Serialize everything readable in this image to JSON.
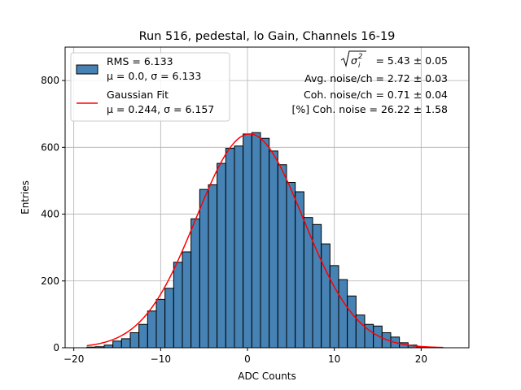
{
  "chart_data": {
    "type": "bar",
    "title": "Run 516, pedestal, lo Gain, Channels 16-19",
    "xlabel": "ADC Counts",
    "ylabel": "Entries",
    "xlim": [
      -21,
      25.5
    ],
    "ylim": [
      0,
      900
    ],
    "xticks": [
      -20,
      -10,
      0,
      10,
      20
    ],
    "yticks": [
      0,
      200,
      400,
      600,
      800
    ],
    "xtick_labels": [
      "−20",
      "−10",
      "0",
      "10",
      "20"
    ],
    "ytick_labels": [
      "0",
      "200",
      "400",
      "600",
      "800"
    ],
    "grid": true,
    "bin_width": 1,
    "bins": [
      {
        "x0": -18.5,
        "count": 2
      },
      {
        "x0": -17.5,
        "count": 3
      },
      {
        "x0": -16.5,
        "count": 8
      },
      {
        "x0": -15.5,
        "count": 20
      },
      {
        "x0": -14.5,
        "count": 27
      },
      {
        "x0": -13.5,
        "count": 45
      },
      {
        "x0": -12.5,
        "count": 70
      },
      {
        "x0": -11.5,
        "count": 110
      },
      {
        "x0": -10.5,
        "count": 145
      },
      {
        "x0": -9.5,
        "count": 178
      },
      {
        "x0": -8.5,
        "count": 256
      },
      {
        "x0": -7.5,
        "count": 287
      },
      {
        "x0": -6.5,
        "count": 386
      },
      {
        "x0": -5.5,
        "count": 474
      },
      {
        "x0": -4.5,
        "count": 488
      },
      {
        "x0": -3.5,
        "count": 552
      },
      {
        "x0": -2.5,
        "count": 597
      },
      {
        "x0": -1.5,
        "count": 604
      },
      {
        "x0": -0.5,
        "count": 640
      },
      {
        "x0": 0.5,
        "count": 644
      },
      {
        "x0": 1.5,
        "count": 627
      },
      {
        "x0": 2.5,
        "count": 589
      },
      {
        "x0": 3.5,
        "count": 548
      },
      {
        "x0": 4.5,
        "count": 495
      },
      {
        "x0": 5.5,
        "count": 467
      },
      {
        "x0": 6.5,
        "count": 390
      },
      {
        "x0": 7.5,
        "count": 369
      },
      {
        "x0": 8.5,
        "count": 311
      },
      {
        "x0": 9.5,
        "count": 246
      },
      {
        "x0": 10.5,
        "count": 204
      },
      {
        "x0": 11.5,
        "count": 155
      },
      {
        "x0": 12.5,
        "count": 98
      },
      {
        "x0": 13.5,
        "count": 70
      },
      {
        "x0": 14.5,
        "count": 65
      },
      {
        "x0": 15.5,
        "count": 45
      },
      {
        "x0": 16.5,
        "count": 32
      },
      {
        "x0": 17.5,
        "count": 15
      },
      {
        "x0": 18.5,
        "count": 8
      },
      {
        "x0": 19.5,
        "count": 3
      },
      {
        "x0": 20.5,
        "count": 2
      },
      {
        "x0": 21.5,
        "count": 1
      }
    ],
    "fit": {
      "type": "gaussian",
      "amplitude": 640,
      "mu": 0.244,
      "sigma": 6.157,
      "x_range": [
        -18.5,
        22.5
      ]
    },
    "legend": {
      "placement": "upper left",
      "entries": [
        {
          "line1": "RMS = 6.133",
          "line2": "μ = 0.0, σ = 6.133",
          "marker": "patch"
        },
        {
          "line1": "Gaussian Fit",
          "line2": "μ = 0.244, σ = 6.157",
          "marker": "line"
        }
      ]
    },
    "annotations": [
      "= 5.43 ± 0.05",
      "Avg. noise/ch = 2.72 ± 0.03",
      "Coh. noise/ch = 0.71 ± 0.04",
      "[%] Coh. noise = 26.22 ± 1.58"
    ],
    "colors": {
      "bar_fill": "#4682b4",
      "bar_edge": "#000000",
      "fit_line": "#ff0000",
      "grid": "#b0b0b0"
    }
  }
}
